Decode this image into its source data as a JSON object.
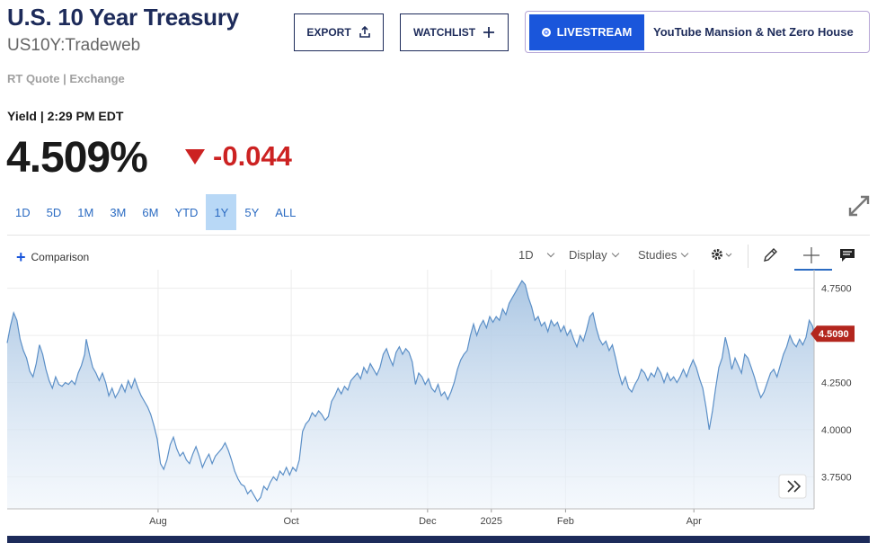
{
  "header": {
    "title": "U.S. 10 Year Treasury",
    "symbol": "US10Y:Tradeweb",
    "rt_quote": "RT Quote | Exchange"
  },
  "buttons": {
    "export_label": "EXPORT",
    "watchlist_label": "WATCHLIST",
    "livestream_label": "LIVESTREAM",
    "livestream_title": "YouTube Mansion & Net Zero House"
  },
  "quote": {
    "yield_label": "Yield | 2:29 PM EDT",
    "price": "4.509%",
    "change": "-0.044"
  },
  "ranges": [
    "1D",
    "5D",
    "1M",
    "3M",
    "6M",
    "YTD",
    "1Y",
    "5Y",
    "ALL"
  ],
  "active_range": "1Y",
  "toolbar": {
    "comparison_label": "Comparison",
    "interval_label": "1D",
    "display_label": "Display",
    "studies_label": "Studies"
  },
  "icons": [
    "export-icon",
    "plus-icon",
    "live-dot-icon",
    "down-triangle-icon",
    "expand-icon",
    "gear-icon",
    "pencil-icon",
    "crosshair-icon",
    "comment-icon",
    "chevron-double-right-icon"
  ],
  "colors": {
    "brand_navy": "#1d2b5a",
    "link_blue": "#2b6bc2",
    "negative_red": "#cc2222",
    "line": "#5b8fc7",
    "price_tag": "#b3261e"
  },
  "chart_data": {
    "type": "area",
    "xlabel": "",
    "ylabel": "",
    "ylim": [
      3.58,
      4.82
    ],
    "y_ticks": [
      "4.7500",
      "4.5000",
      "4.2500",
      "4.0000",
      "3.7500"
    ],
    "x_ticks": [
      {
        "label": "Aug",
        "t": 0.187
      },
      {
        "label": "Oct",
        "t": 0.352
      },
      {
        "label": "Dec",
        "t": 0.521
      },
      {
        "label": "2025",
        "t": 0.6
      },
      {
        "label": "Feb",
        "t": 0.692
      },
      {
        "label": "Apr",
        "t": 0.851
      }
    ],
    "last_value_label": "4.5090",
    "last_value": 4.509,
    "grid": true,
    "series": [
      {
        "points": [
          [
            0.0,
            4.46
          ],
          [
            0.004,
            4.55
          ],
          [
            0.008,
            4.62
          ],
          [
            0.012,
            4.58
          ],
          [
            0.016,
            4.48
          ],
          [
            0.02,
            4.42
          ],
          [
            0.024,
            4.38
          ],
          [
            0.028,
            4.31
          ],
          [
            0.032,
            4.28
          ],
          [
            0.036,
            4.35
          ],
          [
            0.04,
            4.45
          ],
          [
            0.044,
            4.4
          ],
          [
            0.048,
            4.32
          ],
          [
            0.052,
            4.26
          ],
          [
            0.056,
            4.22
          ],
          [
            0.06,
            4.28
          ],
          [
            0.064,
            4.24
          ],
          [
            0.068,
            4.23
          ],
          [
            0.072,
            4.25
          ],
          [
            0.076,
            4.24
          ],
          [
            0.08,
            4.26
          ],
          [
            0.084,
            4.24
          ],
          [
            0.088,
            4.3
          ],
          [
            0.092,
            4.34
          ],
          [
            0.096,
            4.4
          ],
          [
            0.098,
            4.48
          ],
          [
            0.102,
            4.4
          ],
          [
            0.106,
            4.33
          ],
          [
            0.11,
            4.3
          ],
          [
            0.114,
            4.26
          ],
          [
            0.118,
            4.3
          ],
          [
            0.122,
            4.25
          ],
          [
            0.126,
            4.18
          ],
          [
            0.13,
            4.22
          ],
          [
            0.134,
            4.17
          ],
          [
            0.138,
            4.2
          ],
          [
            0.142,
            4.24
          ],
          [
            0.146,
            4.2
          ],
          [
            0.15,
            4.26
          ],
          [
            0.154,
            4.22
          ],
          [
            0.158,
            4.27
          ],
          [
            0.162,
            4.22
          ],
          [
            0.166,
            4.18
          ],
          [
            0.17,
            4.15
          ],
          [
            0.174,
            4.12
          ],
          [
            0.178,
            4.08
          ],
          [
            0.182,
            4.02
          ],
          [
            0.186,
            3.95
          ],
          [
            0.19,
            3.82
          ],
          [
            0.194,
            3.79
          ],
          [
            0.198,
            3.84
          ],
          [
            0.202,
            3.92
          ],
          [
            0.206,
            3.96
          ],
          [
            0.21,
            3.9
          ],
          [
            0.214,
            3.86
          ],
          [
            0.218,
            3.88
          ],
          [
            0.222,
            3.84
          ],
          [
            0.226,
            3.82
          ],
          [
            0.23,
            3.87
          ],
          [
            0.234,
            3.91
          ],
          [
            0.238,
            3.86
          ],
          [
            0.242,
            3.8
          ],
          [
            0.246,
            3.84
          ],
          [
            0.25,
            3.87
          ],
          [
            0.254,
            3.82
          ],
          [
            0.258,
            3.86
          ],
          [
            0.262,
            3.88
          ],
          [
            0.266,
            3.9
          ],
          [
            0.27,
            3.93
          ],
          [
            0.274,
            3.89
          ],
          [
            0.278,
            3.84
          ],
          [
            0.282,
            3.78
          ],
          [
            0.286,
            3.74
          ],
          [
            0.29,
            3.71
          ],
          [
            0.294,
            3.7
          ],
          [
            0.298,
            3.66
          ],
          [
            0.302,
            3.68
          ],
          [
            0.306,
            3.65
          ],
          [
            0.31,
            3.62
          ],
          [
            0.314,
            3.64
          ],
          [
            0.318,
            3.7
          ],
          [
            0.322,
            3.68
          ],
          [
            0.326,
            3.72
          ],
          [
            0.33,
            3.75
          ],
          [
            0.334,
            3.73
          ],
          [
            0.338,
            3.78
          ],
          [
            0.342,
            3.76
          ],
          [
            0.346,
            3.8
          ],
          [
            0.35,
            3.76
          ],
          [
            0.354,
            3.8
          ],
          [
            0.358,
            3.78
          ],
          [
            0.362,
            3.84
          ],
          [
            0.366,
            3.99
          ],
          [
            0.37,
            4.03
          ],
          [
            0.374,
            4.05
          ],
          [
            0.378,
            4.09
          ],
          [
            0.382,
            4.07
          ],
          [
            0.386,
            4.1
          ],
          [
            0.39,
            4.08
          ],
          [
            0.394,
            4.05
          ],
          [
            0.398,
            4.07
          ],
          [
            0.402,
            4.15
          ],
          [
            0.406,
            4.18
          ],
          [
            0.41,
            4.22
          ],
          [
            0.414,
            4.19
          ],
          [
            0.418,
            4.23
          ],
          [
            0.422,
            4.21
          ],
          [
            0.426,
            4.26
          ],
          [
            0.43,
            4.28
          ],
          [
            0.434,
            4.3
          ],
          [
            0.438,
            4.27
          ],
          [
            0.442,
            4.33
          ],
          [
            0.446,
            4.3
          ],
          [
            0.45,
            4.35
          ],
          [
            0.454,
            4.32
          ],
          [
            0.458,
            4.29
          ],
          [
            0.462,
            4.33
          ],
          [
            0.466,
            4.4
          ],
          [
            0.47,
            4.43
          ],
          [
            0.474,
            4.38
          ],
          [
            0.478,
            4.34
          ],
          [
            0.482,
            4.41
          ],
          [
            0.486,
            4.44
          ],
          [
            0.49,
            4.4
          ],
          [
            0.494,
            4.43
          ],
          [
            0.498,
            4.41
          ],
          [
            0.502,
            4.36
          ],
          [
            0.506,
            4.24
          ],
          [
            0.51,
            4.3
          ],
          [
            0.514,
            4.28
          ],
          [
            0.518,
            4.24
          ],
          [
            0.522,
            4.27
          ],
          [
            0.526,
            4.22
          ],
          [
            0.53,
            4.2
          ],
          [
            0.534,
            4.24
          ],
          [
            0.538,
            4.18
          ],
          [
            0.542,
            4.2
          ],
          [
            0.546,
            4.16
          ],
          [
            0.55,
            4.2
          ],
          [
            0.554,
            4.25
          ],
          [
            0.558,
            4.32
          ],
          [
            0.562,
            4.37
          ],
          [
            0.566,
            4.4
          ],
          [
            0.57,
            4.42
          ],
          [
            0.574,
            4.5
          ],
          [
            0.578,
            4.56
          ],
          [
            0.582,
            4.5
          ],
          [
            0.586,
            4.55
          ],
          [
            0.59,
            4.58
          ],
          [
            0.594,
            4.54
          ],
          [
            0.598,
            4.6
          ],
          [
            0.602,
            4.57
          ],
          [
            0.606,
            4.6
          ],
          [
            0.61,
            4.58
          ],
          [
            0.614,
            4.64
          ],
          [
            0.618,
            4.61
          ],
          [
            0.622,
            4.67
          ],
          [
            0.626,
            4.7
          ],
          [
            0.63,
            4.73
          ],
          [
            0.634,
            4.76
          ],
          [
            0.638,
            4.79
          ],
          [
            0.642,
            4.77
          ],
          [
            0.646,
            4.7
          ],
          [
            0.65,
            4.65
          ],
          [
            0.654,
            4.58
          ],
          [
            0.658,
            4.6
          ],
          [
            0.662,
            4.55
          ],
          [
            0.666,
            4.57
          ],
          [
            0.67,
            4.52
          ],
          [
            0.674,
            4.58
          ],
          [
            0.678,
            4.55
          ],
          [
            0.682,
            4.57
          ],
          [
            0.686,
            4.52
          ],
          [
            0.69,
            4.55
          ],
          [
            0.694,
            4.5
          ],
          [
            0.698,
            4.53
          ],
          [
            0.702,
            4.48
          ],
          [
            0.706,
            4.44
          ],
          [
            0.71,
            4.5
          ],
          [
            0.714,
            4.47
          ],
          [
            0.718,
            4.53
          ],
          [
            0.722,
            4.6
          ],
          [
            0.726,
            4.62
          ],
          [
            0.73,
            4.54
          ],
          [
            0.734,
            4.48
          ],
          [
            0.738,
            4.45
          ],
          [
            0.742,
            4.47
          ],
          [
            0.746,
            4.42
          ],
          [
            0.75,
            4.45
          ],
          [
            0.754,
            4.38
          ],
          [
            0.758,
            4.3
          ],
          [
            0.762,
            4.24
          ],
          [
            0.766,
            4.28
          ],
          [
            0.77,
            4.22
          ],
          [
            0.774,
            4.2
          ],
          [
            0.778,
            4.24
          ],
          [
            0.782,
            4.27
          ],
          [
            0.786,
            4.32
          ],
          [
            0.79,
            4.3
          ],
          [
            0.794,
            4.26
          ],
          [
            0.798,
            4.3
          ],
          [
            0.802,
            4.28
          ],
          [
            0.806,
            4.33
          ],
          [
            0.81,
            4.3
          ],
          [
            0.814,
            4.25
          ],
          [
            0.818,
            4.3
          ],
          [
            0.822,
            4.26
          ],
          [
            0.826,
            4.28
          ],
          [
            0.83,
            4.25
          ],
          [
            0.834,
            4.28
          ],
          [
            0.838,
            4.32
          ],
          [
            0.842,
            4.28
          ],
          [
            0.846,
            4.33
          ],
          [
            0.85,
            4.37
          ],
          [
            0.854,
            4.33
          ],
          [
            0.858,
            4.27
          ],
          [
            0.862,
            4.22
          ],
          [
            0.866,
            4.12
          ],
          [
            0.87,
            4.0
          ],
          [
            0.874,
            4.1
          ],
          [
            0.878,
            4.22
          ],
          [
            0.882,
            4.33
          ],
          [
            0.886,
            4.38
          ],
          [
            0.89,
            4.49
          ],
          [
            0.894,
            4.42
          ],
          [
            0.898,
            4.32
          ],
          [
            0.902,
            4.38
          ],
          [
            0.906,
            4.34
          ],
          [
            0.91,
            4.3
          ],
          [
            0.914,
            4.4
          ],
          [
            0.918,
            4.38
          ],
          [
            0.922,
            4.33
          ],
          [
            0.926,
            4.28
          ],
          [
            0.93,
            4.22
          ],
          [
            0.934,
            4.17
          ],
          [
            0.938,
            4.2
          ],
          [
            0.942,
            4.25
          ],
          [
            0.946,
            4.3
          ],
          [
            0.95,
            4.32
          ],
          [
            0.954,
            4.28
          ],
          [
            0.958,
            4.34
          ],
          [
            0.962,
            4.4
          ],
          [
            0.966,
            4.44
          ],
          [
            0.97,
            4.5
          ],
          [
            0.974,
            4.46
          ],
          [
            0.978,
            4.44
          ],
          [
            0.982,
            4.48
          ],
          [
            0.986,
            4.45
          ],
          [
            0.99,
            4.49
          ],
          [
            0.994,
            4.58
          ],
          [
            0.998,
            4.55
          ],
          [
            1.0,
            4.509
          ]
        ]
      }
    ]
  }
}
